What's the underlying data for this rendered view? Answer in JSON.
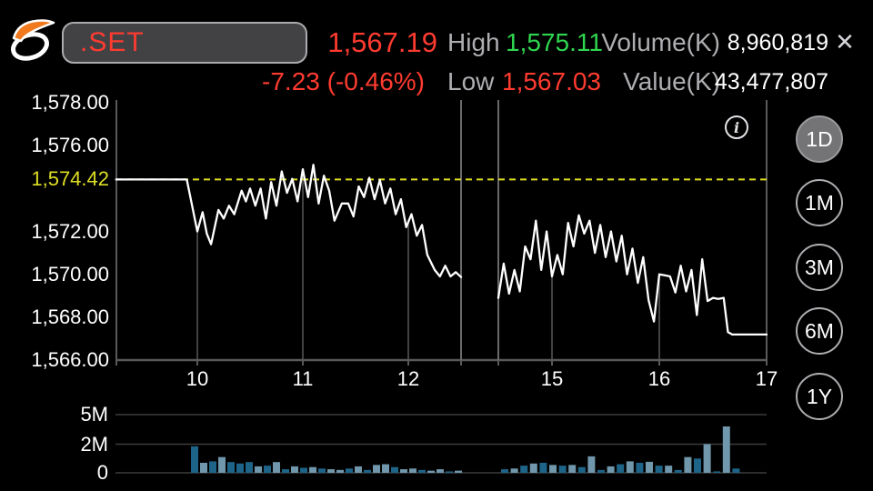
{
  "header": {
    "symbol": ".SET",
    "last_price": "1,567.19",
    "change": "-7.23 (-0.46%)",
    "high_label": "High",
    "high_value": "1,575.11",
    "low_label": "Low",
    "low_value": "1,567.03",
    "volume_label": "Volume(K)",
    "volume_value": "8,960,819",
    "value_label": "Value(K)",
    "value_value": "43,477,807",
    "close_glyph": "✕"
  },
  "info_glyph": "i",
  "range_buttons": [
    {
      "label": "1D",
      "selected": true
    },
    {
      "label": "1M",
      "selected": false
    },
    {
      "label": "3M",
      "selected": false
    },
    {
      "label": "6M",
      "selected": false
    },
    {
      "label": "1Y",
      "selected": false
    }
  ],
  "colors": {
    "red": "#ff3b30",
    "green": "#2fd64f",
    "yellow": "#dede24",
    "grid": "#59595c",
    "label_gray": "#aeaeb2",
    "price_line": "#ffffff",
    "vol_dark": "#1e6488",
    "vol_light": "#7097ab"
  },
  "chart_data": {
    "type": "line",
    "title": ".SET intraday price",
    "prev_close": 1574.42,
    "prev_close_label": "1,574.42",
    "y_axis": {
      "min": 1566.0,
      "max": 1578.13,
      "tick_values": [
        1578,
        1576,
        1572,
        1570,
        1568,
        1566
      ],
      "tick_labels": [
        "1,578.00",
        "1,576.00",
        "1,572.00",
        "1,570.00",
        "1,568.00",
        "1,566.00"
      ]
    },
    "x_axis": {
      "tick_hours": [
        10,
        11,
        12,
        15,
        16,
        17
      ],
      "tick_labels": [
        "10",
        "11",
        "12",
        "15",
        "16",
        "17"
      ]
    },
    "session_gap_hours": [
      12.5,
      14.5
    ],
    "dropline_hours": [
      10,
      11,
      12,
      15,
      16
    ],
    "sessions": [
      {
        "name": "morning",
        "points": [
          [
            9.23,
            1574.42
          ],
          [
            9.9,
            1574.42
          ],
          [
            10.0,
            1572.0
          ],
          [
            10.05,
            1572.9
          ],
          [
            10.09,
            1571.9
          ],
          [
            10.13,
            1571.4
          ],
          [
            10.2,
            1573.0
          ],
          [
            10.25,
            1572.6
          ],
          [
            10.3,
            1573.2
          ],
          [
            10.35,
            1572.8
          ],
          [
            10.42,
            1573.9
          ],
          [
            10.46,
            1573.4
          ],
          [
            10.5,
            1574.0
          ],
          [
            10.55,
            1573.2
          ],
          [
            10.6,
            1574.0
          ],
          [
            10.65,
            1572.6
          ],
          [
            10.7,
            1574.3
          ],
          [
            10.75,
            1573.2
          ],
          [
            10.8,
            1574.8
          ],
          [
            10.85,
            1573.8
          ],
          [
            10.9,
            1574.45
          ],
          [
            10.95,
            1573.4
          ],
          [
            11.0,
            1574.9
          ],
          [
            11.05,
            1573.6
          ],
          [
            11.1,
            1575.11
          ],
          [
            11.15,
            1573.3
          ],
          [
            11.2,
            1574.6
          ],
          [
            11.25,
            1573.9
          ],
          [
            11.3,
            1572.5
          ],
          [
            11.37,
            1573.3
          ],
          [
            11.43,
            1573.3
          ],
          [
            11.48,
            1572.7
          ],
          [
            11.53,
            1574.1
          ],
          [
            11.58,
            1573.6
          ],
          [
            11.63,
            1574.5
          ],
          [
            11.68,
            1573.5
          ],
          [
            11.73,
            1574.4
          ],
          [
            11.78,
            1573.3
          ],
          [
            11.83,
            1574.0
          ],
          [
            11.88,
            1572.8
          ],
          [
            11.93,
            1573.5
          ],
          [
            11.98,
            1572.2
          ],
          [
            12.03,
            1572.8
          ],
          [
            12.08,
            1571.8
          ],
          [
            12.13,
            1572.3
          ],
          [
            12.18,
            1570.9
          ],
          [
            12.25,
            1570.2
          ],
          [
            12.3,
            1569.9
          ],
          [
            12.35,
            1570.4
          ],
          [
            12.4,
            1569.9
          ],
          [
            12.45,
            1570.1
          ],
          [
            12.5,
            1569.87
          ]
        ]
      },
      {
        "name": "afternoon",
        "points": [
          [
            14.5,
            1568.9
          ],
          [
            14.55,
            1570.5
          ],
          [
            14.6,
            1569.1
          ],
          [
            14.65,
            1570.2
          ],
          [
            14.7,
            1569.2
          ],
          [
            14.75,
            1571.3
          ],
          [
            14.8,
            1570.7
          ],
          [
            14.85,
            1572.5
          ],
          [
            14.9,
            1570.2
          ],
          [
            14.95,
            1572.0
          ],
          [
            15.0,
            1569.9
          ],
          [
            15.05,
            1570.9
          ],
          [
            15.1,
            1570.0
          ],
          [
            15.15,
            1572.4
          ],
          [
            15.2,
            1571.3
          ],
          [
            15.25,
            1572.75
          ],
          [
            15.3,
            1571.9
          ],
          [
            15.35,
            1572.5
          ],
          [
            15.4,
            1571.0
          ],
          [
            15.45,
            1572.3
          ],
          [
            15.5,
            1570.8
          ],
          [
            15.55,
            1572.0
          ],
          [
            15.6,
            1570.6
          ],
          [
            15.65,
            1571.8
          ],
          [
            15.7,
            1570.0
          ],
          [
            15.75,
            1571.2
          ],
          [
            15.8,
            1569.6
          ],
          [
            15.85,
            1570.8
          ],
          [
            15.9,
            1568.8
          ],
          [
            15.95,
            1567.8
          ],
          [
            16.0,
            1570.0
          ],
          [
            16.05,
            1569.95
          ],
          [
            16.1,
            1569.9
          ],
          [
            16.15,
            1569.15
          ],
          [
            16.2,
            1570.4
          ],
          [
            16.25,
            1569.2
          ],
          [
            16.3,
            1570.2
          ],
          [
            16.35,
            1568.1
          ],
          [
            16.4,
            1570.7
          ],
          [
            16.45,
            1568.75
          ],
          [
            16.5,
            1568.9
          ],
          [
            16.55,
            1568.85
          ],
          [
            16.6,
            1568.9
          ],
          [
            16.64,
            1567.3
          ],
          [
            16.68,
            1567.19
          ],
          [
            17.0,
            1567.19
          ]
        ]
      }
    ],
    "volume_chart": {
      "type": "bar",
      "unit": "shares",
      "tick_labels": [
        "5M",
        "2M",
        "0"
      ],
      "tick_values": [
        5,
        2,
        0
      ],
      "sessions": [
        {
          "name": "morning",
          "bars": [
            [
              1.85,
              "d"
            ],
            [
              0.7,
              "l"
            ],
            [
              0.8,
              "d"
            ],
            [
              1.1,
              "l"
            ],
            [
              0.75,
              "d"
            ],
            [
              0.65,
              "d"
            ],
            [
              0.75,
              "d"
            ],
            [
              0.45,
              "l"
            ],
            [
              0.5,
              "d"
            ],
            [
              0.75,
              "l"
            ],
            [
              0.25,
              "d"
            ],
            [
              0.45,
              "l"
            ],
            [
              0.35,
              "d"
            ],
            [
              0.4,
              "l"
            ],
            [
              0.3,
              "d"
            ],
            [
              0.25,
              "l"
            ],
            [
              0.2,
              "l"
            ],
            [
              0.3,
              "d"
            ],
            [
              0.45,
              "l"
            ],
            [
              0.2,
              "d"
            ],
            [
              0.55,
              "l"
            ],
            [
              0.6,
              "l"
            ],
            [
              0.4,
              "d"
            ],
            [
              0.25,
              "l"
            ],
            [
              0.3,
              "l"
            ],
            [
              0.2,
              "d"
            ],
            [
              0.15,
              "l"
            ],
            [
              0.25,
              "l"
            ],
            [
              0.1,
              "d"
            ],
            [
              0.15,
              "l"
            ]
          ]
        },
        {
          "name": "afternoon",
          "bars": [
            [
              0.25,
              "d"
            ],
            [
              0.3,
              "l"
            ],
            [
              0.5,
              "d"
            ],
            [
              0.65,
              "l"
            ],
            [
              0.7,
              "d"
            ],
            [
              0.55,
              "l"
            ],
            [
              0.5,
              "d"
            ],
            [
              0.55,
              "l"
            ],
            [
              0.4,
              "d"
            ],
            [
              1.15,
              "l"
            ],
            [
              0.2,
              "d"
            ],
            [
              0.45,
              "l"
            ],
            [
              0.6,
              "d"
            ],
            [
              0.8,
              "l"
            ],
            [
              0.7,
              "d"
            ],
            [
              0.77,
              "l"
            ],
            [
              0.5,
              "d"
            ],
            [
              0.5,
              "l"
            ],
            [
              0.2,
              "d"
            ],
            [
              1.1,
              "l"
            ],
            [
              1.0,
              "d"
            ],
            [
              2.0,
              "l"
            ],
            [
              0.1,
              "d"
            ],
            [
              3.8,
              "l"
            ],
            [
              0.3,
              "d"
            ]
          ]
        }
      ]
    }
  }
}
